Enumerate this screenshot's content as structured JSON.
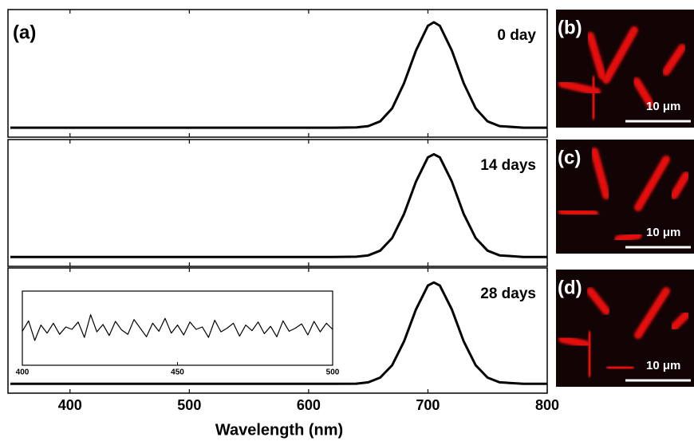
{
  "chart_data": [
    {
      "type": "line",
      "label": "(a)",
      "annotation": "0 day",
      "color": "#000000",
      "x": [
        350,
        400,
        450,
        500,
        550,
        600,
        620,
        640,
        650,
        660,
        670,
        680,
        690,
        700,
        705,
        710,
        720,
        730,
        740,
        750,
        760,
        780,
        800
      ],
      "values": [
        0,
        0,
        0,
        0,
        0,
        0,
        0,
        0.002,
        0.015,
        0.06,
        0.183,
        0.421,
        0.732,
        0.966,
        1,
        0.966,
        0.732,
        0.421,
        0.183,
        0.06,
        0.015,
        0,
        0
      ],
      "xlim": [
        350,
        800
      ],
      "ylim": [
        -0.09,
        1.12
      ]
    },
    {
      "type": "line",
      "annotation": "14 days",
      "color": "#000000",
      "x": [
        350,
        400,
        450,
        500,
        550,
        600,
        620,
        640,
        650,
        660,
        670,
        680,
        690,
        700,
        705,
        710,
        720,
        730,
        740,
        750,
        760,
        780,
        800
      ],
      "values": [
        0,
        0,
        0,
        0,
        0,
        0,
        0,
        0.002,
        0.015,
        0.06,
        0.18,
        0.41,
        0.72,
        0.95,
        0.98,
        0.95,
        0.72,
        0.41,
        0.18,
        0.06,
        0.015,
        0,
        0
      ],
      "xlim": [
        350,
        800
      ],
      "ylim": [
        -0.09,
        1.12
      ]
    },
    {
      "type": "line",
      "annotation": "28 days",
      "color": "#000000",
      "x_label": "Wavelength (nm)",
      "x": [
        350,
        400,
        450,
        500,
        550,
        600,
        620,
        640,
        650,
        660,
        670,
        680,
        690,
        700,
        705,
        710,
        720,
        730,
        740,
        750,
        760,
        780,
        800
      ],
      "values": [
        0,
        0,
        0,
        0,
        0,
        0,
        0,
        0.002,
        0.015,
        0.06,
        0.18,
        0.41,
        0.72,
        0.95,
        0.98,
        0.95,
        0.72,
        0.41,
        0.18,
        0.06,
        0.015,
        0,
        0
      ],
      "xlim": [
        350,
        800
      ],
      "ylim": [
        -0.09,
        1.12
      ],
      "xticks": [
        400,
        500,
        600,
        700,
        800
      ]
    },
    {
      "type": "line",
      "color": "#000000",
      "x": [
        400,
        402,
        404,
        406,
        408,
        410,
        412,
        414,
        416,
        418,
        420,
        422,
        424,
        426,
        428,
        430,
        432,
        434,
        436,
        438,
        440,
        442,
        444,
        446,
        448,
        450,
        452,
        454,
        456,
        458,
        460,
        462,
        464,
        466,
        468,
        470,
        472,
        474,
        476,
        478,
        480,
        482,
        484,
        486,
        488,
        490,
        492,
        494,
        496,
        498,
        500
      ],
      "values": [
        0.45,
        0.62,
        0.3,
        0.55,
        0.42,
        0.58,
        0.4,
        0.52,
        0.48,
        0.6,
        0.35,
        0.72,
        0.44,
        0.56,
        0.38,
        0.61,
        0.47,
        0.4,
        0.64,
        0.5,
        0.36,
        0.58,
        0.45,
        0.66,
        0.42,
        0.55,
        0.39,
        0.6,
        0.48,
        0.52,
        0.35,
        0.63,
        0.44,
        0.5,
        0.58,
        0.37,
        0.55,
        0.46,
        0.6,
        0.41,
        0.53,
        0.36,
        0.62,
        0.45,
        0.5,
        0.57,
        0.39,
        0.61,
        0.44,
        0.58,
        0.48
      ],
      "xlim": [
        400,
        500
      ],
      "ylim": [
        0,
        1
      ],
      "xticks": [
        400,
        450,
        500
      ]
    }
  ],
  "images": [
    {
      "label": "(b)",
      "scale": "10 μm"
    },
    {
      "label": "(c)",
      "scale": "10 μm"
    },
    {
      "label": "(d)",
      "scale": "10 μm"
    }
  ]
}
